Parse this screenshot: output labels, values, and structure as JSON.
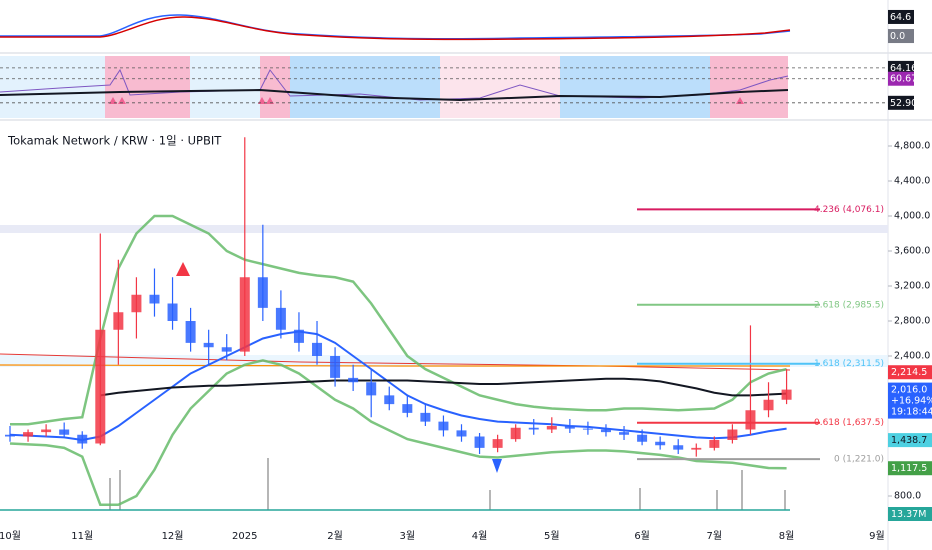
{
  "header": {
    "title": "Tokamak Network / KRW · 1일 · UPBIT"
  },
  "indicator_panels": [
    {
      "ylim": [
        -54,
        122
      ],
      "labels": [
        {
          "value": 64.6,
          "label": "64.6",
          "color": "#131722"
        },
        {
          "value": 0,
          "label": "0.0",
          "color": "#787b86"
        }
      ]
    },
    {
      "ylim": [
        48,
        68
      ],
      "labels": [
        {
          "value": 64.16,
          "label": "64.16",
          "color": "#131722"
        },
        {
          "value": 60.67,
          "label": "60.67",
          "color": "#9c27b0"
        },
        {
          "value": 52.9,
          "label": "52.90",
          "color": "#131722"
        }
      ]
    }
  ],
  "chart_data": {
    "type": "candlestick",
    "categories": [
      "10월",
      null,
      null,
      null,
      "11월",
      null,
      null,
      null,
      null,
      "12월",
      null,
      null,
      null,
      "2025",
      null,
      null,
      null,
      null,
      "2월",
      null,
      null,
      null,
      "3월",
      null,
      null,
      null,
      "4월",
      null,
      null,
      null,
      "5월",
      null,
      null,
      null,
      null,
      "6월",
      null,
      null,
      null,
      "7월",
      null,
      null,
      null,
      "8월",
      null,
      null,
      null,
      null,
      "9월"
    ],
    "open": [
      1500,
      1480,
      1530,
      1560,
      1500,
      1400,
      2700,
      2900,
      3100,
      3000,
      2800,
      2550,
      2500,
      2450,
      3300,
      2950,
      2700,
      2550,
      2400,
      2150,
      2100,
      1950,
      1850,
      1750,
      1650,
      1550,
      1480,
      1350,
      1450,
      1580,
      1560,
      1600,
      1570,
      1560,
      1530,
      1500,
      1420,
      1380,
      1330,
      1350,
      1440,
      1560,
      1780,
      1900,
      null,
      null,
      null,
      null,
      null
    ],
    "high": [
      1600,
      1560,
      1620,
      1640,
      1540,
      3800,
      3500,
      3300,
      3400,
      3300,
      2950,
      2700,
      2650,
      4900,
      3900,
      3150,
      2900,
      2800,
      2500,
      2300,
      2250,
      2050,
      1950,
      1850,
      1720,
      1620,
      1520,
      1500,
      1620,
      1680,
      1700,
      1680,
      1650,
      1620,
      1600,
      1560,
      1480,
      1450,
      1400,
      1480,
      1620,
      2750,
      2100,
      2250,
      null,
      null,
      null,
      null,
      null
    ],
    "low": [
      1420,
      1420,
      1480,
      1470,
      1340,
      1380,
      2300,
      2600,
      2850,
      2700,
      2450,
      2300,
      2350,
      2400,
      2800,
      2600,
      2450,
      2300,
      2050,
      2000,
      1700,
      1780,
      1700,
      1600,
      1480,
      1420,
      1280,
      1300,
      1420,
      1500,
      1520,
      1520,
      1500,
      1480,
      1440,
      1380,
      1330,
      1280,
      1250,
      1320,
      1400,
      1500,
      1700,
      1850,
      null,
      null,
      null,
      null,
      null
    ],
    "close": [
      1480,
      1530,
      1560,
      1500,
      1400,
      2700,
      2900,
      3100,
      3000,
      2800,
      2550,
      2500,
      2450,
      3300,
      2950,
      2700,
      2550,
      2400,
      2150,
      2100,
      1950,
      1850,
      1750,
      1650,
      1550,
      1480,
      1350,
      1450,
      1580,
      1560,
      1600,
      1570,
      1560,
      1530,
      1500,
      1420,
      1380,
      1330,
      1350,
      1440,
      1560,
      1780,
      1900,
      2016,
      null,
      null,
      null,
      null,
      null
    ],
    "up_color": "#f23645",
    "down_color": "#2962ff",
    "overlays": [
      {
        "color": "#66bb6a",
        "values": [
          1620,
          1620,
          1650,
          1680,
          1700,
          2600,
          3400,
          3800,
          4000,
          4000,
          3900,
          3800,
          3600,
          3500,
          3450,
          3400,
          3350,
          3320,
          3300,
          3250,
          3000,
          2700,
          2400,
          2250,
          2150,
          2050,
          1950,
          1900,
          1850,
          1820,
          1800,
          1790,
          1780,
          1780,
          1800,
          1800,
          1790,
          1780,
          1790,
          1800,
          1900,
          2100,
          2200,
          2250,
          null,
          null,
          null,
          null,
          null
        ]
      },
      {
        "color": "#66bb6a",
        "values": [
          1400,
          1390,
          1380,
          1350,
          1250,
          700,
          700,
          800,
          1100,
          1500,
          1800,
          2000,
          2200,
          2300,
          2350,
          2300,
          2200,
          2050,
          1900,
          1800,
          1650,
          1550,
          1450,
          1400,
          1350,
          1300,
          1250,
          1240,
          1260,
          1280,
          1300,
          1310,
          1320,
          1320,
          1310,
          1290,
          1270,
          1240,
          1200,
          1190,
          1180,
          1150,
          1120,
          1117.5,
          null,
          null,
          null,
          null,
          null
        ]
      },
      {
        "color": "#2962ff",
        "values": [
          1500,
          1490,
          1480,
          1470,
          1440,
          1480,
          1600,
          1750,
          1900,
          2050,
          2200,
          2300,
          2400,
          2500,
          2600,
          2650,
          2680,
          2650,
          2550,
          2400,
          2250,
          2100,
          1950,
          1850,
          1780,
          1720,
          1680,
          1650,
          1640,
          1630,
          1620,
          1600,
          1590,
          1570,
          1550,
          1530,
          1510,
          1490,
          1470,
          1460,
          1470,
          1500,
          1540,
          1570,
          null,
          null,
          null,
          null,
          null
        ]
      },
      {
        "color": "#131722",
        "values": [
          null,
          null,
          null,
          null,
          null,
          1950,
          1980,
          2000,
          2020,
          2040,
          2050,
          2060,
          2060,
          2070,
          2080,
          2090,
          2100,
          2110,
          2120,
          2120,
          2120,
          2120,
          2120,
          2110,
          2100,
          2090,
          2080,
          2080,
          2090,
          2100,
          2110,
          2120,
          2130,
          2140,
          2140,
          2130,
          2110,
          2070,
          2030,
          1980,
          1950,
          1950,
          1960,
          1970,
          null,
          null,
          null,
          null,
          null
        ]
      }
    ],
    "ylim": [
      640,
      5040
    ],
    "yticks": [
      {
        "value": 800,
        "label": "800.0"
      },
      {
        "value": 2400,
        "label": "2,400.0"
      },
      {
        "value": 2800,
        "label": "2,800.0"
      },
      {
        "value": 3200,
        "label": "3,200.0"
      },
      {
        "value": 3600,
        "label": "3,600.0"
      },
      {
        "value": 4000,
        "label": "4,000.0"
      },
      {
        "value": 4400,
        "label": "4,400.0"
      },
      {
        "value": 4800,
        "label": "4,800.0"
      }
    ],
    "fib_levels": [
      {
        "value": 4076.1,
        "label": "4.236 (4,076.1)",
        "color": "#d81b60"
      },
      {
        "value": 2985.5,
        "label": "2.618 (2,985.5)",
        "color": "#81c784"
      },
      {
        "value": 2311.5,
        "label": "1.618 (2,311.5)",
        "color": "#4fc3f7"
      },
      {
        "value": 1637.5,
        "label": "0.618 (1,637.5)",
        "color": "#f23645"
      },
      {
        "value": 1221.0,
        "label": "0 (1,221.0)",
        "color": "#9e9e9e"
      }
    ],
    "price_labels": [
      {
        "value": 2214.5,
        "label": "2,214.5",
        "color": "#f23645",
        "extra": []
      },
      {
        "value": 2016.0,
        "label": "2,016.0",
        "color": "#2962ff",
        "extra": [
          "+16.94%",
          "19:18:44"
        ]
      },
      {
        "value": 1438.7,
        "label": "1,438.7",
        "color": "#4dd0e1",
        "extra": []
      },
      {
        "value": 1117.5,
        "label": "1,117.5",
        "color": "#43a047",
        "extra": []
      }
    ],
    "volume_label": {
      "label": "13.37M",
      "color": "#26a69a"
    }
  }
}
